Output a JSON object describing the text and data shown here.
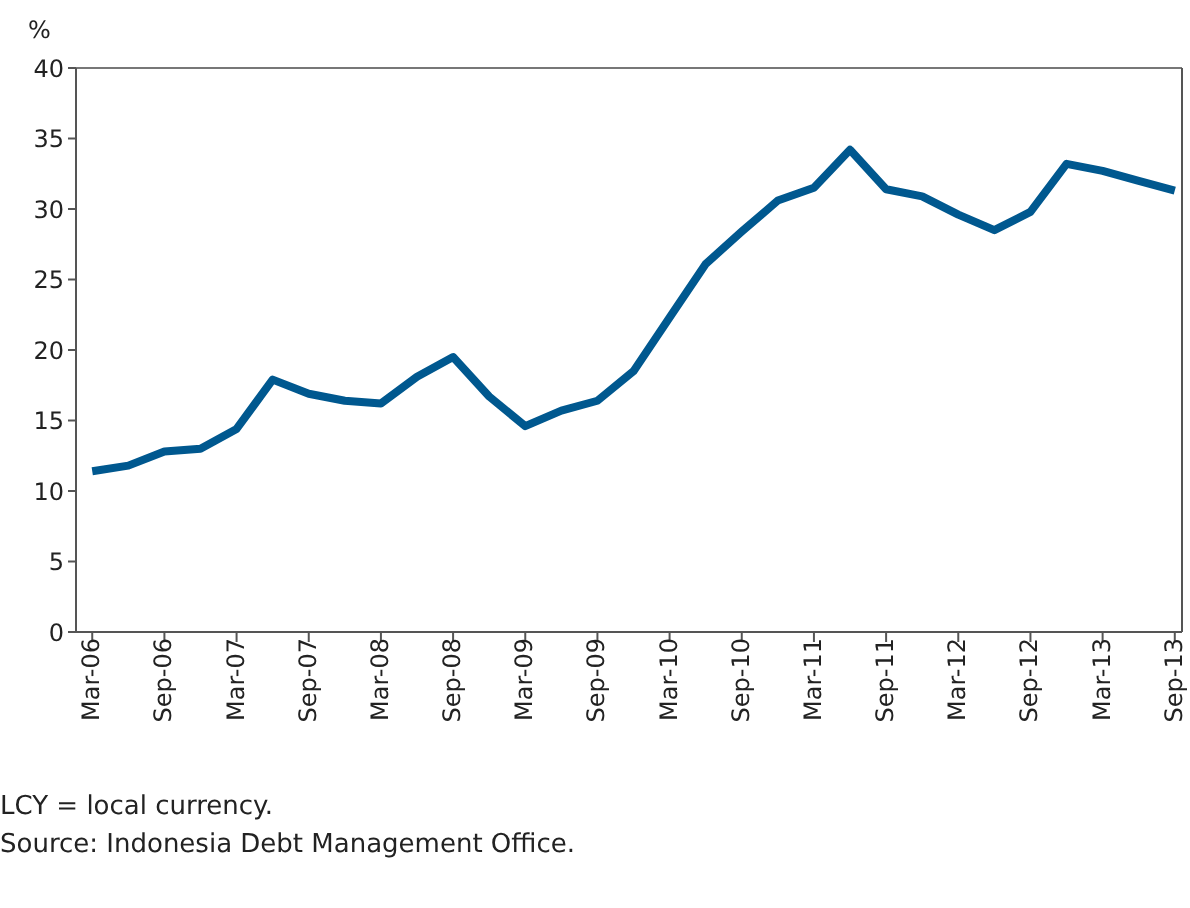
{
  "chart_data": {
    "type": "line",
    "ylabel": "%",
    "categories": [
      "Mar-06",
      null,
      "Sep-06",
      null,
      "Mar-07",
      null,
      "Sep-07",
      null,
      "Mar-08",
      null,
      "Sep-08",
      null,
      "Mar-09",
      null,
      "Sep-09",
      null,
      "Mar-10",
      null,
      "Sep-10",
      null,
      "Mar-11",
      null,
      "Sep-11",
      null,
      "Mar-12",
      null,
      "Sep-12",
      null,
      "Mar-13",
      null,
      "Sep-13"
    ],
    "series": [
      {
        "color": "#00588f",
        "values": [
          11.4,
          11.8,
          12.8,
          13.0,
          14.4,
          17.9,
          16.9,
          16.4,
          16.2,
          18.1,
          19.5,
          16.7,
          14.6,
          15.7,
          16.4,
          18.5,
          22.3,
          26.1,
          28.4,
          30.6,
          31.5,
          34.2,
          31.4,
          30.9,
          29.6,
          28.5,
          29.8,
          33.2,
          32.7,
          32.0,
          31.3
        ]
      }
    ],
    "ylim": [
      0,
      40
    ],
    "yticks": [
      0,
      5,
      10,
      15,
      20,
      25,
      30,
      35,
      40
    ],
    "marker": "none",
    "line_style": "solid",
    "annotations": [
      "LCY = local currency.",
      "Source: Indonesia Debt Management Office."
    ]
  }
}
